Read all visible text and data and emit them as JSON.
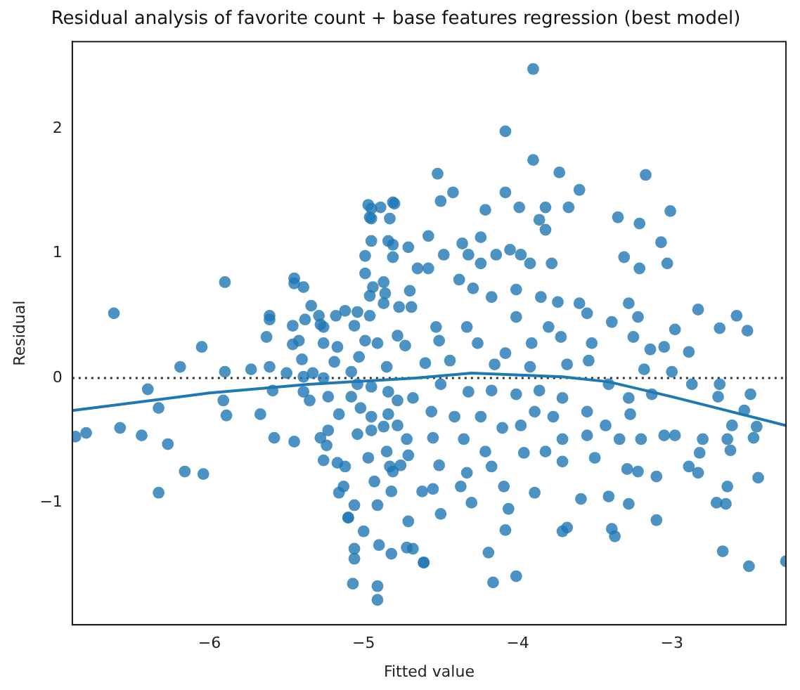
{
  "chart_data": {
    "type": "scatter",
    "title": "Residual analysis of favorite count + base features regression (best model)",
    "xlabel": "Fitted value",
    "ylabel": "Residual",
    "xlim": [
      -6.89,
      -2.26
    ],
    "ylim": [
      -1.98,
      2.7
    ],
    "xticks": [
      -6,
      -5,
      -4,
      -3
    ],
    "yticks": [
      -1,
      0,
      1,
      2
    ],
    "grid": false,
    "legend": false,
    "marker": "circle",
    "ref_lines": [
      {
        "axis": "y",
        "value": 0,
        "color": "#333333",
        "line_style": "dotted"
      }
    ],
    "series": [
      {
        "color": "#1f77b4",
        "x": [
          -6.87,
          -6.8,
          -6.62,
          -6.58,
          -6.44,
          -6.4,
          -6.33,
          -6.33,
          -6.27,
          -6.19,
          -6.16,
          -6.05,
          -6.04,
          -5.91,
          -5.9,
          -5.9,
          -5.89,
          -5.73,
          -5.67,
          -5.63,
          -5.61,
          -5.59,
          -5.61,
          -5.58,
          -5.45,
          -5.45,
          -5.5,
          -5.42,
          -5.33,
          -5.38,
          -5.28,
          -5.24,
          -5.17,
          -5.13,
          -5.1,
          -5.06,
          -5.07,
          -4.91,
          -4.91,
          -4.97,
          -4.95,
          -4.81,
          -4.95,
          -4.81,
          -4.72,
          -4.71,
          -3.9,
          -4.08,
          -3.9,
          -3.73,
          -4.52,
          -3.17,
          -3.6,
          -4.08,
          -4.42,
          -4.5,
          -4.21,
          -3.99,
          -3.82,
          -3.67,
          -3.01,
          -3.35,
          -3.21,
          -3.86,
          -3.82,
          -4.58,
          -4.24,
          -3.07,
          -3.31,
          -3.03,
          -3.21,
          -3.78,
          -3.92,
          -2.83,
          -2.58,
          -2.51,
          -2.69,
          -2.98,
          -2.89,
          -2.87,
          -2.69,
          -2.49,
          -2.7,
          -2.53,
          -2.45,
          -2.61,
          -2.47,
          -2.64,
          -2.8,
          -2.62,
          -2.82,
          -2.89,
          -2.83,
          -2.44,
          -2.64,
          -2.71,
          -2.65,
          -2.67,
          -2.5,
          -2.26,
          -3.1,
          -3.28,
          -3.39,
          -3.37,
          -3.68,
          -3.71,
          -4.08,
          -4.19,
          -4.16,
          -4.01,
          -4.61,
          -3.05,
          -3.2,
          -3.1,
          -3.22,
          -2.98,
          -4.89,
          -4.8,
          -4.96,
          -4.83,
          -4.95,
          -4.84,
          -4.71,
          -4.99,
          -4.81,
          -4.65,
          -4.99,
          -5.45,
          -5.39,
          -4.87,
          -4.94,
          -4.96,
          -4.7,
          -4.86,
          -4.87,
          -4.77,
          -4.69,
          -5.34,
          -5.29,
          -5.18,
          -5.12,
          -5.04,
          -4.96,
          -5.06,
          -5.26,
          -5.46,
          -5.61,
          -5.26,
          -5.17,
          -5.46,
          -4.99,
          -4.78,
          -4.73,
          -4.91,
          -5.19,
          -5.03,
          -5.4,
          -4.85,
          -5.08,
          -5.39,
          -5.26,
          -5.04,
          -4.95,
          -5.39,
          -5.23,
          -5.35,
          -5.08,
          -5.02,
          -4.84,
          -4.78,
          -4.68,
          -5.16,
          -4.95,
          -4.84,
          -4.78,
          -4.87,
          -5.23,
          -5.28,
          -5.04,
          -4.72,
          -4.95,
          -4.85,
          -4.97,
          -4.76,
          -4.83,
          -5.26,
          -5.12,
          -4.93,
          -4.81,
          -4.82,
          -4.62,
          -5.16,
          -4.91,
          -5.1,
          -5.06,
          -4.71,
          -5.0,
          -4.9,
          -4.68,
          -4.82,
          -4.61,
          -5.06,
          -4.58,
          -4.48,
          -4.36,
          -4.32,
          -4.24,
          -4.14,
          -4.05,
          -3.98,
          -4.38,
          -4.29,
          -4.17,
          -4.01,
          -3.85,
          -3.74,
          -3.6,
          -3.55,
          -3.39,
          -3.28,
          -3.22,
          -4.53,
          -4.33,
          -4.01,
          -3.8,
          -4.51,
          -4.26,
          -4.08,
          -3.91,
          -3.72,
          -3.52,
          -3.25,
          -3.14,
          -3.05,
          -4.6,
          -4.44,
          -4.15,
          -3.92,
          -3.68,
          -3.54,
          -3.18,
          -3.0,
          -4.5,
          -4.32,
          -4.17,
          -4.01,
          -3.86,
          -3.71,
          -3.41,
          -3.28,
          -3.13,
          -4.56,
          -4.41,
          -4.24,
          -4.1,
          -3.89,
          -3.77,
          -3.55,
          -3.43,
          -3.27,
          -4.55,
          -4.35,
          -4.21,
          -3.98,
          -3.71,
          -3.55,
          -3.34,
          -4.51,
          -4.33,
          -4.17,
          -3.96,
          -3.82,
          -3.71,
          -3.5,
          -3.29,
          -4.55,
          -4.37,
          -4.09,
          -3.89,
          -3.59,
          -3.41,
          -4.5,
          -4.3,
          -4.06
        ],
        "values": [
          -0.47,
          -0.44,
          0.52,
          -0.4,
          -0.46,
          -0.09,
          -0.24,
          -0.92,
          -0.53,
          0.09,
          -0.75,
          0.25,
          -0.77,
          -0.18,
          0.05,
          0.77,
          -0.3,
          0.07,
          -0.29,
          0.33,
          0.09,
          -0.1,
          0.5,
          -0.48,
          0.76,
          -0.51,
          0.04,
          0.3,
          0.04,
          0.47,
          0.43,
          -0.54,
          -0.68,
          -0.87,
          -1.12,
          -1.37,
          -1.65,
          -1.78,
          -1.67,
          1.39,
          1.36,
          1.41,
          1.28,
          1.07,
          -1.36,
          -0.62,
          2.48,
          1.98,
          1.75,
          1.65,
          1.64,
          1.63,
          1.51,
          1.49,
          1.49,
          1.42,
          1.35,
          1.37,
          1.37,
          1.37,
          1.34,
          1.29,
          1.24,
          1.27,
          1.19,
          1.14,
          1.13,
          1.09,
          0.97,
          0.92,
          0.88,
          0.92,
          0.92,
          0.55,
          0.5,
          0.38,
          0.4,
          0.39,
          0.21,
          -0.05,
          -0.05,
          -0.13,
          -0.15,
          -0.26,
          -0.39,
          -0.38,
          -0.48,
          -0.49,
          -0.49,
          -0.58,
          -0.6,
          -0.71,
          -0.76,
          -0.8,
          -0.87,
          -1.0,
          -1.01,
          -1.39,
          -1.51,
          -1.47,
          -1.14,
          -1.01,
          -1.21,
          -1.27,
          -1.2,
          -1.23,
          -1.22,
          -1.4,
          -1.64,
          -1.59,
          -1.48,
          -0.46,
          -0.49,
          -0.79,
          -0.75,
          -0.46,
          1.37,
          1.4,
          1.29,
          1.28,
          1.1,
          1.1,
          1.05,
          0.98,
          0.97,
          0.88,
          0.84,
          0.8,
          0.73,
          0.77,
          0.73,
          0.66,
          0.7,
          0.68,
          0.6,
          0.57,
          0.57,
          0.58,
          0.5,
          0.5,
          0.54,
          0.53,
          0.5,
          0.42,
          0.41,
          0.42,
          0.47,
          0.28,
          0.25,
          0.27,
          0.3,
          0.34,
          0.26,
          0.28,
          0.13,
          0.17,
          0.15,
          0.09,
          0.05,
          0.01,
          0.0,
          -0.05,
          -0.07,
          -0.11,
          -0.15,
          -0.18,
          -0.15,
          -0.24,
          -0.11,
          -0.18,
          -0.16,
          -0.29,
          -0.31,
          -0.29,
          -0.38,
          -0.39,
          -0.42,
          -0.48,
          -0.45,
          -0.49,
          -0.42,
          -0.59,
          -0.64,
          -0.7,
          -0.71,
          -0.66,
          -0.71,
          -0.83,
          -0.75,
          -0.91,
          -0.91,
          -0.92,
          -1.02,
          -1.12,
          -1.02,
          -1.15,
          -1.23,
          -1.34,
          -1.37,
          -1.41,
          -1.48,
          -1.45,
          0.88,
          0.99,
          1.08,
          0.99,
          0.92,
          0.99,
          1.03,
          0.99,
          0.79,
          0.72,
          0.65,
          0.71,
          0.65,
          0.61,
          0.6,
          0.52,
          0.45,
          0.6,
          0.49,
          0.41,
          0.41,
          0.49,
          0.41,
          0.3,
          0.28,
          0.2,
          0.28,
          0.33,
          0.28,
          0.33,
          0.23,
          0.25,
          0.12,
          0.14,
          0.11,
          0.09,
          0.11,
          0.14,
          0.07,
          0.05,
          -0.05,
          -0.11,
          -0.1,
          -0.13,
          -0.1,
          -0.16,
          -0.05,
          -0.16,
          -0.13,
          -0.27,
          -0.31,
          -0.31,
          -0.4,
          -0.27,
          -0.31,
          -0.27,
          -0.38,
          -0.29,
          -0.48,
          -0.49,
          -0.59,
          -0.38,
          -0.49,
          -0.46,
          -0.49,
          -0.7,
          -0.76,
          -0.71,
          -0.6,
          -0.59,
          -0.67,
          -0.64,
          -0.73,
          -0.89,
          -0.87,
          -0.87,
          -0.92,
          -0.97,
          -0.95,
          -1.09,
          -1.0,
          -1.05
        ]
      },
      {
        "type": "line",
        "color": "#1f77b4",
        "marker": "none",
        "line_style": "solid",
        "x": [
          -6.89,
          -6.0,
          -5.36,
          -4.66,
          -4.3,
          -3.71,
          -3.41,
          -3.0,
          -2.26
        ],
        "values": [
          -0.26,
          -0.12,
          -0.05,
          0.0,
          0.04,
          0.01,
          -0.03,
          -0.15,
          -0.38
        ]
      }
    ]
  }
}
